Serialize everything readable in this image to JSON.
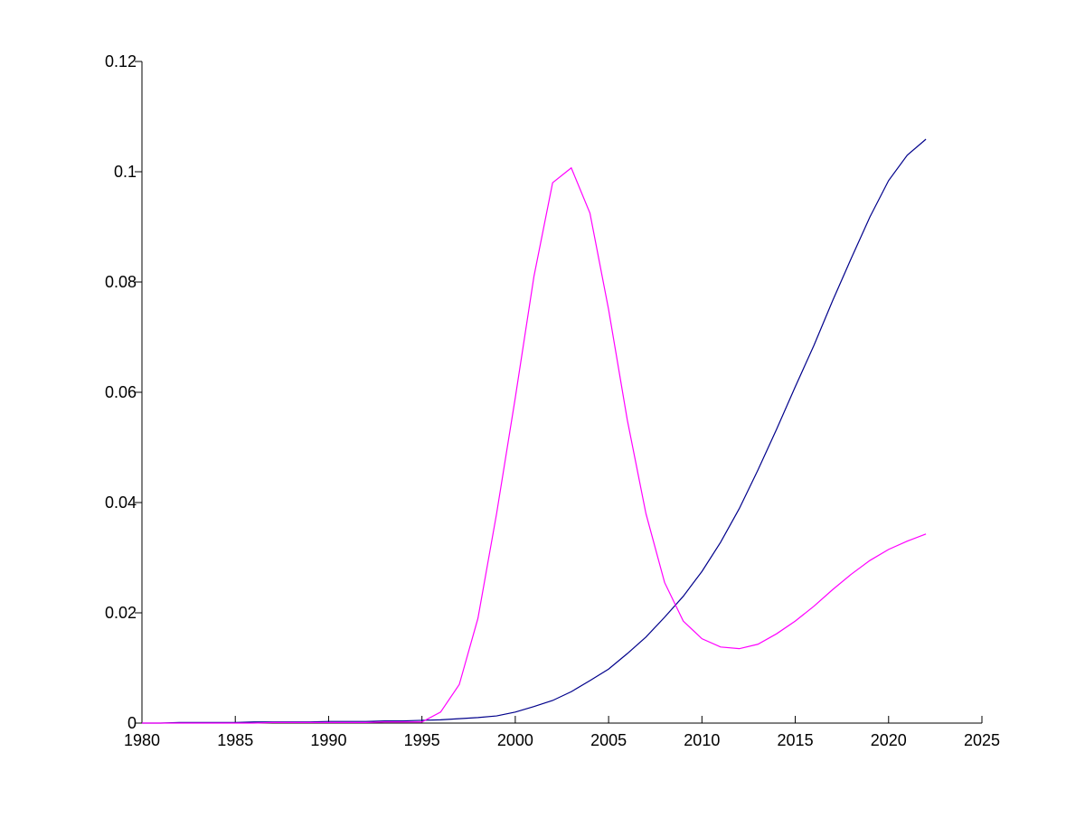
{
  "chart_data": {
    "type": "line",
    "x": [
      1980,
      1981,
      1982,
      1983,
      1984,
      1985,
      1986,
      1987,
      1988,
      1989,
      1990,
      1991,
      1992,
      1993,
      1994,
      1995,
      1996,
      1997,
      1998,
      1999,
      2000,
      2001,
      2002,
      2003,
      2004,
      2005,
      2006,
      2007,
      2008,
      2009,
      2010,
      2011,
      2012,
      2013,
      2014,
      2015,
      2016,
      2017,
      2018,
      2019,
      2020,
      2021,
      2022
    ],
    "series": [
      {
        "color": "#00008b",
        "values": [
          0,
          0,
          0.0001,
          0.0001,
          0.0001,
          0.0001,
          0.0002,
          0.0002,
          0.0002,
          0.0002,
          0.0003,
          0.0003,
          0.0003,
          0.0004,
          0.0004,
          0.0005,
          0.0006,
          0.0008,
          0.001,
          0.0013,
          0.002,
          0.003,
          0.0041,
          0.0057,
          0.0077,
          0.0098,
          0.0126,
          0.0156,
          0.0192,
          0.023,
          0.0275,
          0.0328,
          0.0389,
          0.0459,
          0.0533,
          0.061,
          0.0685,
          0.0766,
          0.0843,
          0.0918,
          0.0984,
          0.103,
          0.1059
        ]
      },
      {
        "color": "#ff00ff",
        "values": [
          0,
          0,
          0,
          0,
          0,
          0,
          0,
          0.0001,
          0.0001,
          0.0001,
          0.0001,
          0.0001,
          0.0001,
          0.0002,
          0.0002,
          0.0002,
          0.002,
          0.007,
          0.019,
          0.038,
          0.059,
          0.081,
          0.098,
          0.1007,
          0.0925,
          0.075,
          0.055,
          0.038,
          0.0255,
          0.0185,
          0.0153,
          0.0138,
          0.0135,
          0.0143,
          0.0162,
          0.0185,
          0.0212,
          0.0242,
          0.027,
          0.0295,
          0.0315,
          0.033,
          0.0343
        ]
      }
    ],
    "xlim": [
      1980,
      2025
    ],
    "xticks": [
      1980,
      1985,
      1990,
      1995,
      2000,
      2005,
      2010,
      2015,
      2020,
      2025
    ],
    "ylim": [
      0,
      0.12
    ],
    "yticks": [
      0,
      0.02,
      0.04,
      0.06,
      0.08,
      0.1,
      0.12
    ]
  }
}
